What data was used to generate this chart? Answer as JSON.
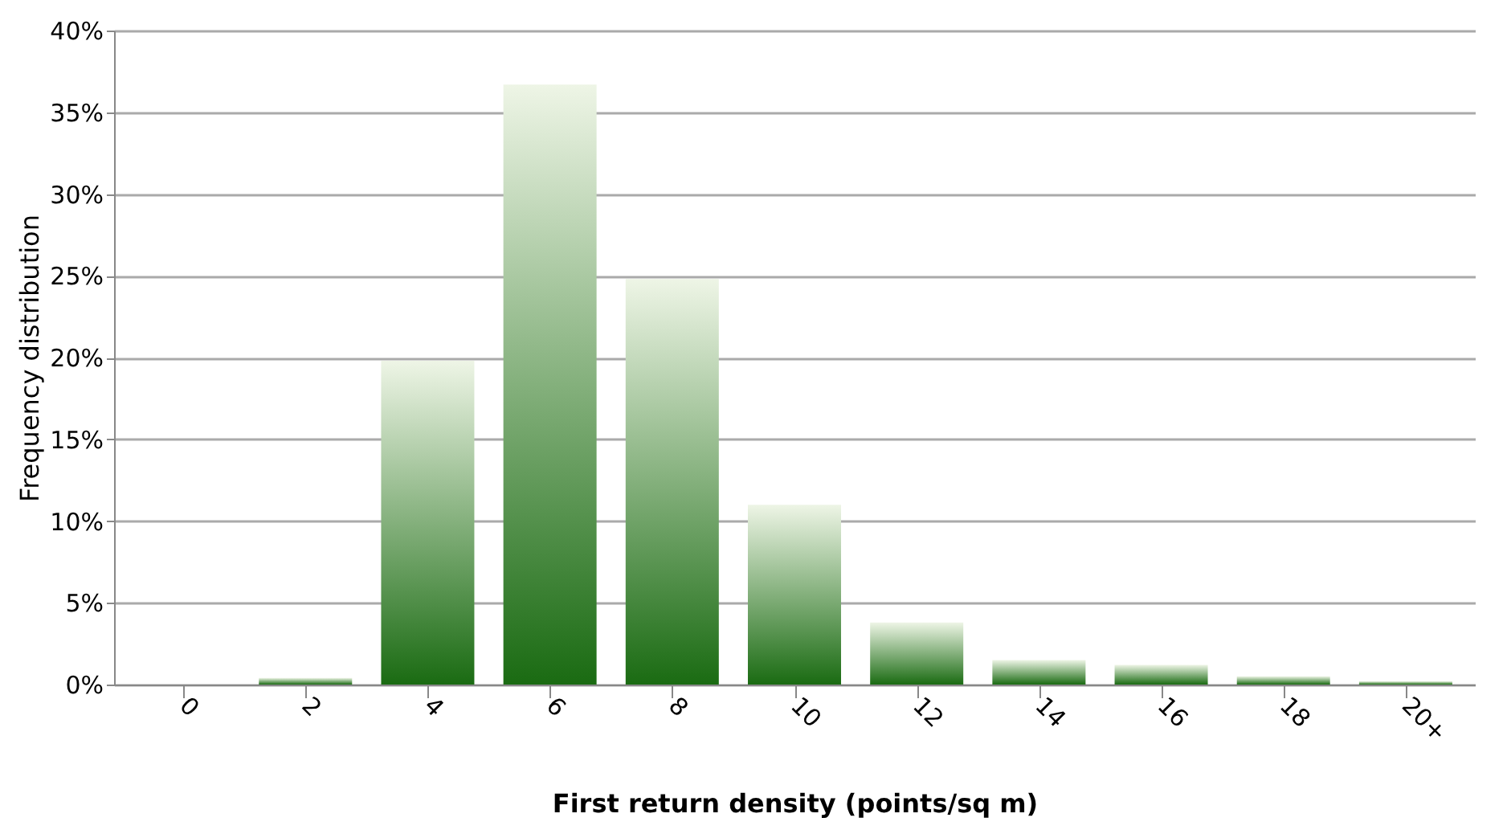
{
  "chart_data": {
    "type": "bar",
    "xlabel": "First return density (points/sq m)",
    "ylabel": "Frequency distribution",
    "categories": [
      "0",
      "2",
      "4",
      "6",
      "8",
      "10",
      "12",
      "14",
      "16",
      "18",
      "20+"
    ],
    "values": [
      0,
      0.4,
      19.8,
      36.7,
      24.8,
      11.0,
      3.8,
      1.5,
      1.2,
      0.5,
      0.2
    ],
    "color": "#1a6b12",
    "ylim": [
      0,
      40
    ],
    "yticks": [
      {
        "value": 0,
        "label": "0%"
      },
      {
        "value": 5,
        "label": "5%"
      },
      {
        "value": 10,
        "label": "10%"
      },
      {
        "value": 15,
        "label": "15%"
      },
      {
        "value": 20,
        "label": "20%"
      },
      {
        "value": 25,
        "label": "25%"
      },
      {
        "value": 30,
        "label": "30%"
      },
      {
        "value": 35,
        "label": "35%"
      },
      {
        "value": 40,
        "label": "40%"
      }
    ],
    "grid": "y"
  }
}
